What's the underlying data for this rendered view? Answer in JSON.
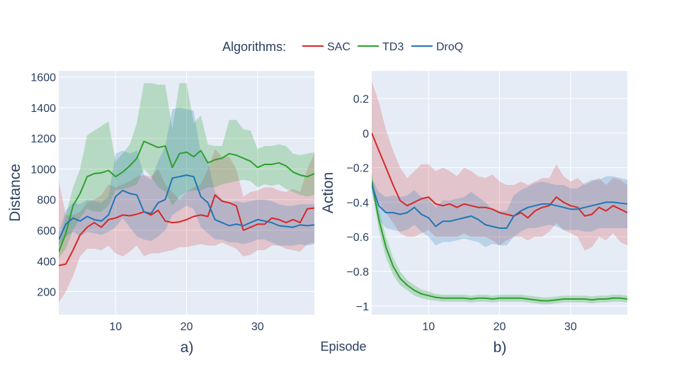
{
  "legend": {
    "title": "Algorithms:",
    "placement": "top-center"
  },
  "shared_xlabel": "Episode",
  "series_styles": [
    {
      "name": "SAC",
      "color": "#d62728",
      "band_fill": "rgba(214,39,40,0.2)"
    },
    {
      "name": "TD3",
      "color": "#2ca02c",
      "band_fill": "rgba(44,160,44,0.25)"
    },
    {
      "name": "DroQ",
      "color": "#1f77b4",
      "band_fill": "rgba(31,119,180,0.22)"
    }
  ],
  "colors": {
    "plot_bg": "#e5ecf6",
    "grid": "#ffffff",
    "text": "#2a3f5f"
  },
  "chart_data": [
    {
      "type": "line",
      "panel_label": "a)",
      "ylabel": "Distance",
      "xlabel": "",
      "xlim": [
        2,
        38
      ],
      "ylim": [
        50,
        1640
      ],
      "xticks": [
        10,
        20,
        30
      ],
      "yticks": [
        200,
        400,
        600,
        800,
        1000,
        1200,
        1400,
        1600
      ],
      "grid": true,
      "x": [
        2,
        3,
        4,
        5,
        6,
        7,
        8,
        9,
        10,
        11,
        12,
        13,
        14,
        15,
        16,
        17,
        18,
        19,
        20,
        21,
        22,
        23,
        24,
        25,
        26,
        27,
        28,
        29,
        30,
        31,
        32,
        33,
        34,
        35,
        36,
        37,
        38
      ],
      "series": [
        {
          "name": "SAC",
          "values": [
            370,
            380,
            470,
            570,
            620,
            650,
            620,
            670,
            680,
            700,
            695,
            705,
            720,
            700,
            730,
            660,
            650,
            655,
            670,
            690,
            700,
            690,
            830,
            790,
            780,
            760,
            600,
            620,
            640,
            640,
            680,
            670,
            650,
            670,
            650,
            740,
            745
          ],
          "lower": [
            130,
            200,
            300,
            430,
            480,
            480,
            470,
            500,
            450,
            430,
            460,
            500,
            430,
            450,
            450,
            460,
            470,
            490,
            490,
            500,
            510,
            500,
            500,
            520,
            500,
            480,
            430,
            440,
            470,
            470,
            500,
            500,
            480,
            470,
            460,
            510,
            520
          ],
          "upper": [
            920,
            700,
            700,
            720,
            780,
            800,
            830,
            900,
            880,
            900,
            920,
            950,
            960,
            950,
            1000,
            900,
            850,
            800,
            850,
            880,
            900,
            1000,
            1130,
            1080,
            1080,
            1000,
            820,
            850,
            860,
            880,
            880,
            860,
            850,
            870,
            850,
            1000,
            1100
          ]
        },
        {
          "name": "TD3",
          "values": [
            460,
            580,
            760,
            840,
            950,
            970,
            975,
            990,
            950,
            980,
            1020,
            1070,
            1180,
            1160,
            1140,
            1150,
            1010,
            1100,
            1110,
            1080,
            1120,
            1040,
            1060,
            1070,
            1100,
            1090,
            1070,
            1050,
            1010,
            1030,
            1030,
            1040,
            1020,
            980,
            960,
            950,
            970
          ],
          "lower": [
            420,
            480,
            600,
            680,
            740,
            720,
            720,
            760,
            860,
            870,
            880,
            900,
            1000,
            950,
            880,
            850,
            760,
            820,
            850,
            860,
            860,
            880,
            880,
            900,
            910,
            920,
            930,
            920,
            880,
            900,
            890,
            900,
            870,
            850,
            830,
            820,
            830
          ],
          "upper": [
            520,
            700,
            880,
            1000,
            1220,
            1250,
            1280,
            1310,
            1050,
            1100,
            1160,
            1300,
            1560,
            1560,
            1550,
            1550,
            1260,
            1560,
            1560,
            1300,
            1350,
            1160,
            1150,
            1150,
            1320,
            1320,
            1260,
            1250,
            1130,
            1150,
            1150,
            1160,
            1150,
            1100,
            1090,
            1100,
            1110
          ]
        },
        {
          "name": "DroQ",
          "values": [
            540,
            640,
            680,
            660,
            690,
            670,
            660,
            700,
            820,
            860,
            840,
            830,
            720,
            710,
            780,
            800,
            940,
            950,
            960,
            950,
            820,
            780,
            670,
            650,
            630,
            640,
            630,
            650,
            670,
            660,
            650,
            630,
            625,
            620,
            635,
            630,
            635
          ],
          "lower": [
            500,
            560,
            590,
            560,
            590,
            580,
            570,
            590,
            620,
            680,
            620,
            560,
            540,
            530,
            560,
            600,
            700,
            730,
            760,
            740,
            620,
            580,
            540,
            540,
            520,
            520,
            510,
            520,
            540,
            540,
            520,
            500,
            500,
            500,
            510,
            500,
            510
          ],
          "upper": [
            590,
            730,
            780,
            770,
            800,
            790,
            780,
            820,
            1100,
            1120,
            1100,
            1120,
            960,
            930,
            1050,
            1150,
            1390,
            1400,
            1390,
            1380,
            1100,
            1050,
            850,
            800,
            780,
            790,
            780,
            790,
            800,
            800,
            790,
            770,
            760,
            760,
            770,
            770,
            770
          ]
        }
      ]
    },
    {
      "type": "line",
      "panel_label": "b)",
      "ylabel": "Action",
      "xlabel": "",
      "xlim": [
        2,
        38
      ],
      "ylim": [
        -1.05,
        0.36
      ],
      "xticks": [
        10,
        20,
        30
      ],
      "yticks": [
        0.2,
        0,
        -0.2,
        -0.4,
        -0.6,
        -0.8,
        -1
      ],
      "yticklabels": [
        "0.2",
        "0",
        "−0.2",
        "−0.4",
        "−0.6",
        "−0.8",
        "−1"
      ],
      "grid": true,
      "x": [
        2,
        3,
        4,
        5,
        6,
        7,
        8,
        9,
        10,
        11,
        12,
        13,
        14,
        15,
        16,
        17,
        18,
        19,
        20,
        21,
        22,
        23,
        24,
        25,
        26,
        27,
        28,
        29,
        30,
        31,
        32,
        33,
        34,
        35,
        36,
        37,
        38
      ],
      "series": [
        {
          "name": "SAC",
          "values": [
            0,
            -0.1,
            -0.2,
            -0.3,
            -0.39,
            -0.42,
            -0.4,
            -0.38,
            -0.37,
            -0.41,
            -0.42,
            -0.41,
            -0.43,
            -0.41,
            -0.42,
            -0.43,
            -0.43,
            -0.44,
            -0.46,
            -0.47,
            -0.48,
            -0.46,
            -0.49,
            -0.45,
            -0.43,
            -0.42,
            -0.37,
            -0.4,
            -0.42,
            -0.43,
            -0.48,
            -0.47,
            -0.43,
            -0.45,
            -0.42,
            -0.44,
            -0.46
          ],
          "lower": [
            -0.3,
            -0.4,
            -0.46,
            -0.52,
            -0.58,
            -0.6,
            -0.6,
            -0.58,
            -0.56,
            -0.6,
            -0.6,
            -0.6,
            -0.6,
            -0.58,
            -0.6,
            -0.6,
            -0.6,
            -0.62,
            -0.65,
            -0.62,
            -0.6,
            -0.6,
            -0.62,
            -0.6,
            -0.6,
            -0.57,
            -0.52,
            -0.56,
            -0.58,
            -0.6,
            -0.68,
            -0.66,
            -0.6,
            -0.62,
            -0.58,
            -0.63,
            -0.65
          ],
          "upper": [
            0.3,
            0.18,
            0.02,
            -0.1,
            -0.2,
            -0.26,
            -0.22,
            -0.18,
            -0.18,
            -0.22,
            -0.2,
            -0.22,
            -0.25,
            -0.2,
            -0.22,
            -0.25,
            -0.26,
            -0.24,
            -0.28,
            -0.3,
            -0.3,
            -0.28,
            -0.3,
            -0.28,
            -0.26,
            -0.26,
            -0.18,
            -0.25,
            -0.28,
            -0.26,
            -0.3,
            -0.28,
            -0.26,
            -0.3,
            -0.26,
            -0.27,
            -0.3
          ]
        },
        {
          "name": "TD3",
          "values": [
            -0.28,
            -0.5,
            -0.66,
            -0.77,
            -0.84,
            -0.88,
            -0.91,
            -0.93,
            -0.94,
            -0.95,
            -0.955,
            -0.955,
            -0.955,
            -0.955,
            -0.96,
            -0.955,
            -0.955,
            -0.96,
            -0.955,
            -0.955,
            -0.955,
            -0.955,
            -0.96,
            -0.965,
            -0.97,
            -0.97,
            -0.965,
            -0.96,
            -0.96,
            -0.96,
            -0.96,
            -0.965,
            -0.96,
            -0.96,
            -0.955,
            -0.955,
            -0.96
          ],
          "lower": [
            -0.33,
            -0.56,
            -0.72,
            -0.82,
            -0.88,
            -0.91,
            -0.94,
            -0.955,
            -0.965,
            -0.97,
            -0.975,
            -0.975,
            -0.975,
            -0.975,
            -0.98,
            -0.975,
            -0.975,
            -0.98,
            -0.975,
            -0.975,
            -0.975,
            -0.975,
            -0.98,
            -0.985,
            -0.99,
            -0.99,
            -0.985,
            -0.98,
            -0.98,
            -0.98,
            -0.98,
            -0.985,
            -0.98,
            -0.98,
            -0.975,
            -0.975,
            -0.98
          ],
          "upper": [
            -0.23,
            -0.44,
            -0.6,
            -0.72,
            -0.8,
            -0.85,
            -0.88,
            -0.905,
            -0.915,
            -0.93,
            -0.935,
            -0.935,
            -0.935,
            -0.935,
            -0.94,
            -0.935,
            -0.935,
            -0.94,
            -0.935,
            -0.935,
            -0.935,
            -0.935,
            -0.94,
            -0.945,
            -0.95,
            -0.95,
            -0.945,
            -0.94,
            -0.94,
            -0.94,
            -0.94,
            -0.945,
            -0.94,
            -0.94,
            -0.935,
            -0.935,
            -0.94
          ]
        },
        {
          "name": "DroQ",
          "values": [
            -0.3,
            -0.42,
            -0.46,
            -0.46,
            -0.47,
            -0.46,
            -0.43,
            -0.47,
            -0.49,
            -0.54,
            -0.51,
            -0.51,
            -0.5,
            -0.49,
            -0.48,
            -0.5,
            -0.53,
            -0.54,
            -0.55,
            -0.55,
            -0.48,
            -0.45,
            -0.43,
            -0.42,
            -0.41,
            -0.41,
            -0.42,
            -0.43,
            -0.44,
            -0.44,
            -0.43,
            -0.42,
            -0.41,
            -0.4,
            -0.4,
            -0.405,
            -0.41
          ],
          "lower": [
            -0.34,
            -0.5,
            -0.55,
            -0.56,
            -0.57,
            -0.56,
            -0.53,
            -0.57,
            -0.6,
            -0.65,
            -0.63,
            -0.63,
            -0.62,
            -0.61,
            -0.62,
            -0.63,
            -0.66,
            -0.64,
            -0.65,
            -0.65,
            -0.6,
            -0.57,
            -0.55,
            -0.55,
            -0.54,
            -0.53,
            -0.54,
            -0.56,
            -0.56,
            -0.56,
            -0.57,
            -0.57,
            -0.55,
            -0.55,
            -0.55,
            -0.55,
            -0.55
          ],
          "upper": [
            -0.26,
            -0.34,
            -0.37,
            -0.36,
            -0.37,
            -0.36,
            -0.33,
            -0.37,
            -0.38,
            -0.43,
            -0.39,
            -0.39,
            -0.38,
            -0.37,
            -0.34,
            -0.37,
            -0.4,
            -0.44,
            -0.45,
            -0.45,
            -0.36,
            -0.33,
            -0.31,
            -0.29,
            -0.28,
            -0.29,
            -0.3,
            -0.3,
            -0.32,
            -0.32,
            -0.29,
            -0.27,
            -0.27,
            -0.25,
            -0.25,
            -0.26,
            -0.27
          ]
        }
      ]
    }
  ]
}
